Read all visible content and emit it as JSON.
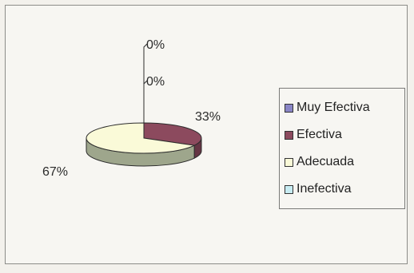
{
  "chart_data": {
    "type": "pie",
    "title": "",
    "categories": [
      "Muy Efectiva",
      "Efectiva",
      "Adecuada",
      "Inefectiva"
    ],
    "values": [
      0,
      33,
      67,
      0
    ],
    "labels": [
      "0%",
      "33%",
      "67%",
      "0%"
    ],
    "colors": [
      "#8a86c6",
      "#8c4a5e",
      "#fafad8",
      "#c8ecf2"
    ],
    "legend": "right",
    "three_d": true
  }
}
